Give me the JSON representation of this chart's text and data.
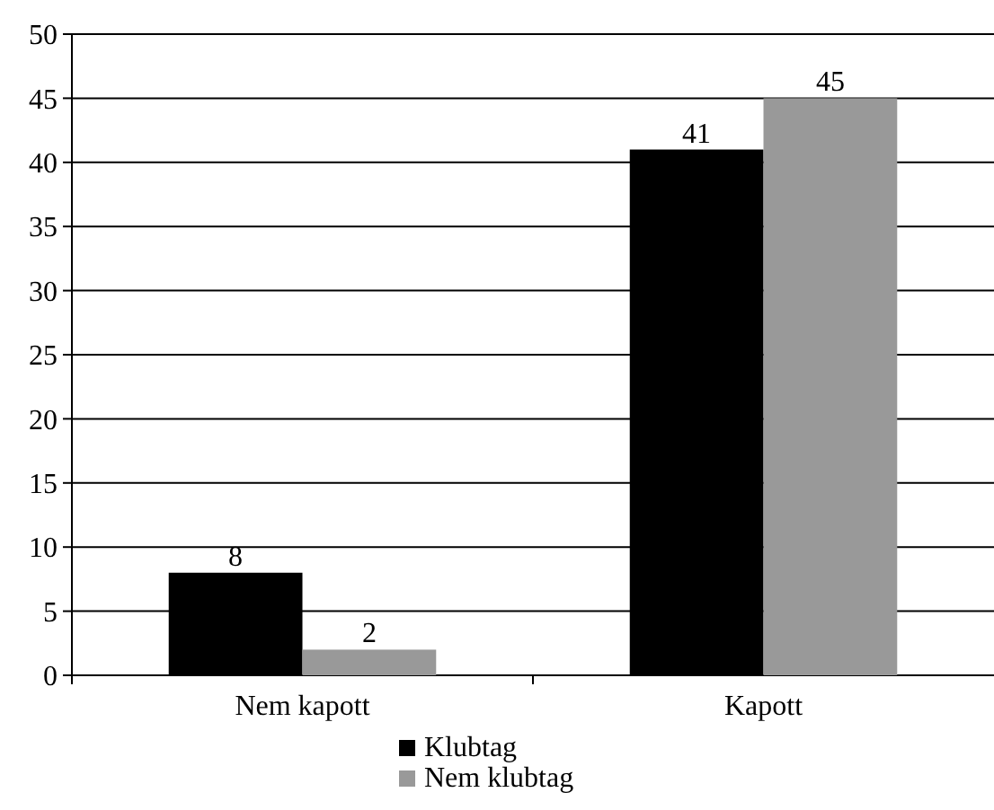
{
  "chart_data": {
    "type": "bar",
    "categories": [
      "Nem kapott",
      "Kapott"
    ],
    "series": [
      {
        "name": "Klubtag",
        "color": "#000000",
        "values": [
          8,
          41
        ]
      },
      {
        "name": "Nem klubtag",
        "color": "#999999",
        "values": [
          2,
          45
        ]
      }
    ],
    "ylim": [
      0,
      50
    ],
    "yticks": [
      0,
      5,
      10,
      15,
      20,
      25,
      30,
      35,
      40,
      45,
      50
    ],
    "grid": "y",
    "legend": "bottom",
    "data_labels": true
  }
}
